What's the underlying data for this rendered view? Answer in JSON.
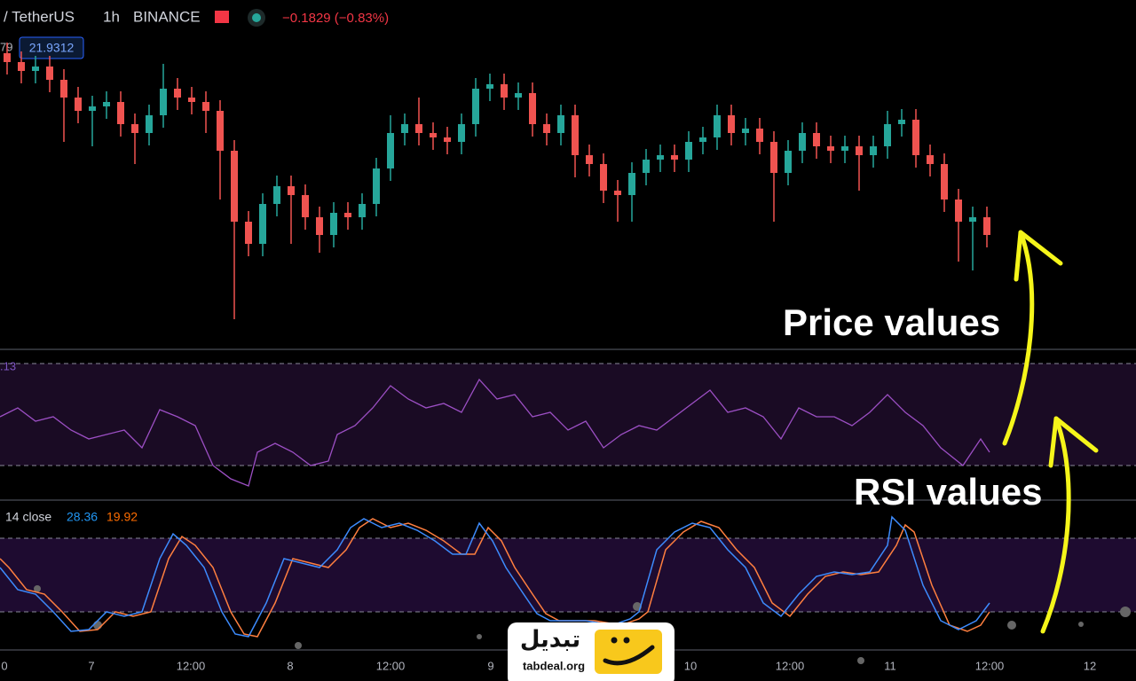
{
  "header": {
    "symbol": "/ TetherUS",
    "interval": "1h",
    "exchange": "BINANCE",
    "change": "−0.1829 (−0.83%)"
  },
  "price_pane": {
    "edge_value": "79",
    "price_label": "21.9312"
  },
  "rsi_pane": {
    "edge_value": ".13"
  },
  "stoch_pane": {
    "label": "14 close",
    "k_value": "28.36",
    "d_value": "19.92"
  },
  "time_axis": [
    "0",
    "7",
    "12:00",
    "8",
    "12:00",
    "9",
    "10",
    "12:00",
    "11",
    "12:00",
    "12"
  ],
  "annotations": {
    "price": "Price values",
    "rsi": "RSI values"
  },
  "logo": {
    "name": "تبدیل",
    "site": "tabdeal.org"
  }
}
